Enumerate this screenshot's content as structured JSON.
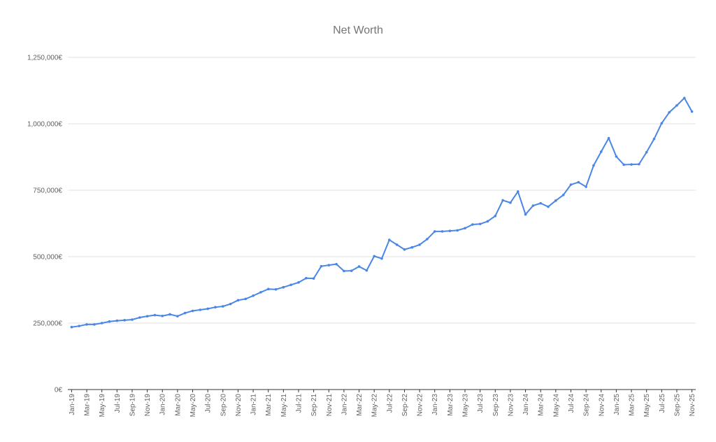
{
  "chart_data": {
    "type": "line",
    "title": "Net Worth",
    "xlabel": "",
    "ylabel": "",
    "ylim": [
      0,
      1250000
    ],
    "y_ticks": [
      0,
      250000,
      500000,
      750000,
      1000000,
      1250000
    ],
    "y_tick_labels": [
      "0€",
      "250,000€",
      "500,000€",
      "750,000€",
      "1,000,000€",
      "1,250,000€"
    ],
    "x_tick_labels": [
      "Jan-19",
      "Mar-19",
      "May-19",
      "Jul-19",
      "Sep-19",
      "Nov-19",
      "Jan-20",
      "Mar-20",
      "May-20",
      "Jul-20",
      "Sep-20",
      "Nov-20",
      "Jan-21",
      "Mar-21",
      "May-21",
      "Jul-21",
      "Sep-21",
      "Nov-21",
      "Jan-22",
      "Mar-22",
      "May-22",
      "Jul-22",
      "Sep-22",
      "Nov-22",
      "Jan-23",
      "Mar-23",
      "May-23",
      "Jul-23",
      "Sep-23",
      "Nov-23",
      "Jan-24",
      "Mar-24",
      "May-24",
      "Jul-24",
      "Sep-24",
      "Nov-24",
      "Jan-25",
      "Mar-25",
      "May-25",
      "Jul-25",
      "Sep-25",
      "Nov-25"
    ],
    "grid": true,
    "legend": "none",
    "line_color": "#4a86e8",
    "series": [
      {
        "x": [
          "Jan-19",
          "Feb-19",
          "Mar-19",
          "Apr-19",
          "May-19",
          "Jun-19",
          "Jul-19",
          "Aug-19",
          "Sep-19",
          "Oct-19",
          "Nov-19",
          "Dec-19",
          "Jan-20",
          "Feb-20",
          "Mar-20",
          "Apr-20",
          "May-20",
          "Jun-20",
          "Jul-20",
          "Aug-20",
          "Sep-20",
          "Oct-20",
          "Nov-20",
          "Dec-20",
          "Jan-21",
          "Feb-21",
          "Mar-21",
          "Apr-21",
          "May-21",
          "Jun-21",
          "Jul-21",
          "Aug-21",
          "Sep-21",
          "Oct-21",
          "Nov-21",
          "Dec-21",
          "Jan-22",
          "Feb-22",
          "Mar-22",
          "Apr-22",
          "May-22",
          "Jun-22",
          "Jul-22",
          "Aug-22",
          "Sep-22",
          "Oct-22",
          "Nov-22",
          "Dec-22",
          "Jan-23",
          "Feb-23",
          "Mar-23",
          "Apr-23",
          "May-23",
          "Jun-23",
          "Jul-23",
          "Aug-23",
          "Sep-23",
          "Oct-23",
          "Nov-23",
          "Dec-23",
          "Jan-24",
          "Feb-24",
          "Mar-24",
          "Apr-24",
          "May-24",
          "Jun-24",
          "Jul-24",
          "Aug-24",
          "Sep-24",
          "Oct-24",
          "Nov-24",
          "Dec-24",
          "Jan-25",
          "Feb-25",
          "Mar-25",
          "Apr-25",
          "May-25",
          "Jun-25",
          "Jul-25",
          "Aug-25",
          "Sep-25",
          "Oct-25",
          "Nov-25"
        ],
        "values": [
          235000,
          239000,
          245000,
          245000,
          250000,
          256000,
          259000,
          261000,
          263000,
          271000,
          276000,
          280000,
          277000,
          283000,
          276000,
          288000,
          296000,
          300000,
          304000,
          310000,
          313000,
          322000,
          336000,
          341000,
          353000,
          366000,
          378000,
          377000,
          385000,
          394000,
          403000,
          419000,
          418000,
          464000,
          468000,
          472000,
          446000,
          447000,
          463000,
          448000,
          502000,
          493000,
          563000,
          545000,
          527000,
          535000,
          545000,
          566000,
          595000,
          595000,
          597000,
          599000,
          607000,
          621000,
          623000,
          633000,
          653000,
          712000,
          703000,
          745000,
          659000,
          692000,
          701000,
          688000,
          711000,
          732000,
          771000,
          780000,
          763000,
          843000,
          895000,
          946000,
          877000,
          846000,
          847000,
          848000,
          893000,
          943000,
          1002000,
          1043000,
          1069000,
          1097000,
          1046000
        ]
      }
    ]
  }
}
